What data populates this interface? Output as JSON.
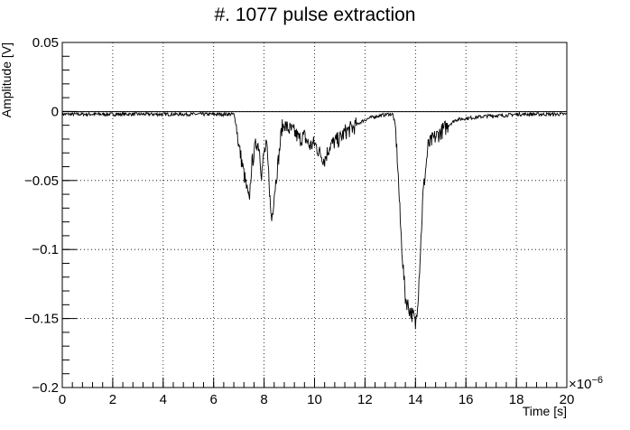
{
  "chart_data": {
    "type": "line",
    "title": "#. 1077 pulse extraction",
    "xlabel": "Time [s]",
    "ylabel": "Amplitude [V]",
    "x_multiplier_label": "×10",
    "x_multiplier_exponent": "−6",
    "xlim": [
      0,
      20
    ],
    "ylim": [
      -0.2,
      0.05
    ],
    "x_ticks": [
      0,
      2,
      4,
      6,
      8,
      10,
      12,
      14,
      16,
      18,
      20
    ],
    "x_tick_labels": [
      "0",
      "2",
      "4",
      "6",
      "8",
      "10",
      "12",
      "14",
      "16",
      "18",
      "20"
    ],
    "y_ticks": [
      -0.2,
      -0.15,
      -0.1,
      -0.05,
      0,
      0.05
    ],
    "y_tick_labels": [
      "−0.2",
      "−0.15",
      "−0.1",
      "−0.05",
      "0",
      "0.05"
    ],
    "grid": true,
    "zero_line": 0,
    "series": [
      {
        "color": "#000000",
        "x": [
          0,
          0.5,
          1,
          1.5,
          2,
          2.5,
          3,
          3.5,
          4,
          4.5,
          5,
          5.5,
          6,
          6.5,
          6.8,
          6.9,
          7.0,
          7.1,
          7.2,
          7.3,
          7.35,
          7.4,
          7.45,
          7.5,
          7.6,
          7.7,
          7.8,
          7.9,
          8.0,
          8.1,
          8.2,
          8.25,
          8.3,
          8.35,
          8.4,
          8.5,
          8.6,
          8.7,
          8.8,
          9.0,
          9.2,
          9.4,
          9.6,
          9.8,
          10.0,
          10.2,
          10.4,
          10.6,
          10.8,
          11.0,
          11.2,
          11.5,
          11.8,
          12.0,
          12.3,
          12.6,
          12.9,
          13.1,
          13.2,
          13.3,
          13.4,
          13.5,
          13.6,
          13.7,
          13.8,
          13.9,
          13.95,
          14.0,
          14.1,
          14.2,
          14.3,
          14.5,
          14.7,
          15.0,
          15.3,
          15.6,
          16.0,
          16.5,
          17.0,
          17.5,
          18.0,
          18.5,
          19.0,
          19.5,
          20.0
        ],
        "y": [
          -0.002,
          -0.002,
          -0.002,
          -0.002,
          -0.002,
          -0.002,
          -0.002,
          -0.002,
          -0.002,
          -0.002,
          -0.002,
          -0.002,
          -0.002,
          -0.002,
          -0.002,
          -0.01,
          -0.025,
          -0.035,
          -0.045,
          -0.055,
          -0.06,
          -0.065,
          -0.055,
          -0.04,
          -0.03,
          -0.022,
          -0.025,
          -0.045,
          -0.03,
          -0.025,
          -0.05,
          -0.07,
          -0.078,
          -0.07,
          -0.06,
          -0.045,
          -0.03,
          -0.012,
          -0.01,
          -0.013,
          -0.015,
          -0.02,
          -0.018,
          -0.025,
          -0.023,
          -0.03,
          -0.035,
          -0.025,
          -0.022,
          -0.02,
          -0.015,
          -0.012,
          -0.008,
          -0.006,
          -0.004,
          -0.003,
          -0.002,
          -0.002,
          -0.01,
          -0.04,
          -0.08,
          -0.11,
          -0.135,
          -0.14,
          -0.145,
          -0.148,
          -0.15,
          -0.155,
          -0.135,
          -0.1,
          -0.06,
          -0.025,
          -0.02,
          -0.015,
          -0.01,
          -0.006,
          -0.005,
          -0.004,
          -0.003,
          -0.003,
          -0.002,
          -0.002,
          -0.002,
          -0.002,
          -0.002
        ]
      }
    ]
  }
}
